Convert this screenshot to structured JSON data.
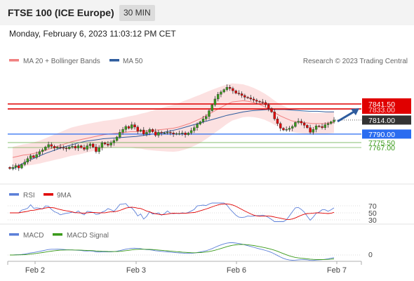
{
  "header": {
    "title": "FTSE 100 (ICE Europe)",
    "interval": "30 MIN"
  },
  "datetime": "Monday, February 6, 2023 11:03:12 PM CET",
  "legend_main": [
    {
      "label": "MA 20 + Bollinger Bands",
      "color": "#f08080"
    },
    {
      "label": "MA 50",
      "color": "#2e5c9e"
    }
  ],
  "copyright": "Research © 2023 Trading Central",
  "legend_rsi": [
    {
      "label": "RSI",
      "color": "#5b7fd8"
    },
    {
      "label": "9MA",
      "color": "#e00000"
    }
  ],
  "legend_macd": [
    {
      "label": "MACD",
      "color": "#5b7fd8"
    },
    {
      "label": "MACD Signal",
      "color": "#3a9a1a"
    }
  ],
  "colors": {
    "up": "#3a9a1a",
    "down": "#e00000",
    "candle_edge": "#333333",
    "resistance": "#e00000",
    "support": "#2a6cf0",
    "target": "#3a9a1a",
    "band_fill": "#fcdcdc",
    "ma20": "#f08080",
    "ma50": "#2e5c9e",
    "arrow": "#2e5c9e"
  },
  "chart_data": {
    "type": "candlestick",
    "x_ticks": [
      "Feb 2",
      "Feb 3",
      "Feb 6",
      "Feb 7"
    ],
    "y_range": [
      7737,
      7870
    ],
    "levels": [
      {
        "label": "7841.50",
        "value": 7841.5,
        "kind": "resistance"
      },
      {
        "label": "7833.00",
        "value": 7833,
        "kind": "resistance"
      },
      {
        "label": "7814.00",
        "value": 7814,
        "kind": "last"
      },
      {
        "label": "7790.00",
        "value": 7790,
        "kind": "support"
      },
      {
        "label": "7775.50",
        "value": 7775.5,
        "kind": "target"
      },
      {
        "label": "7767.00",
        "value": 7767,
        "kind": "target"
      }
    ],
    "close": [
      7731,
      7733,
      7736,
      7732,
      7738,
      7742,
      7748,
      7753,
      7750,
      7755,
      7760,
      7763,
      7768,
      7772,
      7769,
      7766,
      7768,
      7767,
      7766,
      7765,
      7768,
      7769,
      7766,
      7770,
      7767,
      7764,
      7770,
      7773,
      7768,
      7760,
      7767,
      7775,
      7773,
      7771,
      7775,
      7779,
      7785,
      7793,
      7798,
      7803,
      7800,
      7806,
      7802,
      7795,
      7797,
      7790,
      7793,
      7798,
      7794,
      7788,
      7793,
      7792,
      7792,
      7793,
      7792,
      7790,
      7791,
      7791,
      7792,
      7789,
      7792,
      7796,
      7801,
      7807,
      7811,
      7816,
      7820,
      7830,
      7840,
      7850,
      7858,
      7862,
      7866,
      7870,
      7868,
      7864,
      7860,
      7859,
      7856,
      7853,
      7852,
      7850,
      7848,
      7846,
      7845,
      7844,
      7840,
      7834,
      7828,
      7816,
      7808,
      7800,
      7797,
      7798,
      7800,
      7803,
      7810,
      7812,
      7809,
      7805,
      7801,
      7793,
      7798,
      7804,
      7803,
      7801,
      7806,
      7808,
      7811,
      7814
    ],
    "ma20": [
      7750,
      7752,
      7754,
      7755,
      7757,
      7759,
      7762,
      7765,
      7768,
      7771,
      7774,
      7777,
      7779,
      7781,
      7783,
      7785,
      7787,
      7789,
      7790,
      7791,
      7792,
      7793,
      7794,
      7794,
      7795,
      7795,
      7796,
      7797,
      7798,
      7799,
      7800,
      7802,
      7805,
      7808,
      7812,
      7816,
      7821,
      7826,
      7831,
      7836,
      7841,
      7845,
      7846,
      7847,
      7846,
      7844,
      7841,
      7837,
      7832,
      7826,
      7821,
      7817,
      7813,
      7811,
      7810,
      7809,
      7808,
      7808,
      7808,
      7809,
      7810
    ],
    "ma50": [
      7730,
      7738,
      7745,
      7751,
      7757,
      7762,
      7767,
      7771,
      7775,
      7778,
      7780,
      7782,
      7783,
      7784,
      7785,
      7786,
      7788,
      7790,
      7792,
      7795,
      7798,
      7802,
      7806,
      7810,
      7814,
      7818,
      7822,
      7825,
      7828,
      7830,
      7831,
      7832,
      7832,
      7832,
      7831,
      7830,
      7829,
      7829,
      7828,
      7828
    ],
    "rsi": {
      "ticks": [
        70,
        50,
        30
      ],
      "range": [
        20,
        80
      ]
    },
    "macd": {
      "ticks": [
        0
      ]
    }
  }
}
